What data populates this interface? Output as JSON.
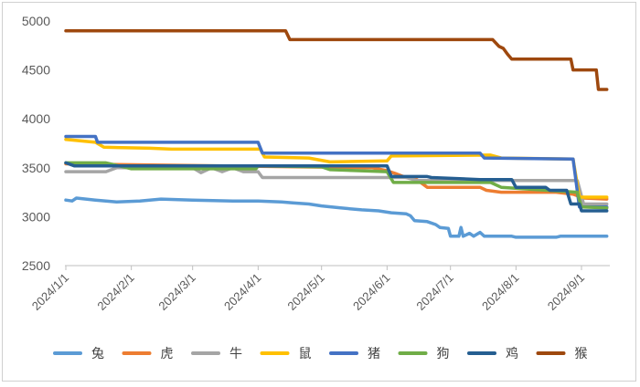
{
  "chart_data": {
    "type": "line",
    "title": "",
    "xlabel": "",
    "ylabel": "",
    "ylim": [
      2500,
      5000
    ],
    "yticks": [
      "2500",
      "3000",
      "3500",
      "4000",
      "4500",
      "5000"
    ],
    "x_range": [
      "2024-01-01",
      "2024-09-15"
    ],
    "xticks": [
      {
        "label": "2024/1/1",
        "date": "2024-01-01"
      },
      {
        "label": "2024/2/1",
        "date": "2024-02-01"
      },
      {
        "label": "2024/3/1",
        "date": "2024-03-01"
      },
      {
        "label": "2024/4/1",
        "date": "2024-04-01"
      },
      {
        "label": "2024/5/1",
        "date": "2024-05-01"
      },
      {
        "label": "2024/6/1",
        "date": "2024-06-01"
      },
      {
        "label": "2024/7/1",
        "date": "2024-07-01"
      },
      {
        "label": "2024/8/1",
        "date": "2024-08-01"
      },
      {
        "label": "2024/9/1",
        "date": "2024-09-01"
      }
    ],
    "grid": false,
    "legend_position": "bottom",
    "series": [
      {
        "name": "兔",
        "color": "#5B9BD5",
        "points": [
          [
            "2024-01-01",
            3170
          ],
          [
            "2024-01-04",
            3160
          ],
          [
            "2024-01-06",
            3190
          ],
          [
            "2024-01-15",
            3170
          ],
          [
            "2024-01-25",
            3150
          ],
          [
            "2024-02-05",
            3160
          ],
          [
            "2024-02-15",
            3180
          ],
          [
            "2024-03-01",
            3170
          ],
          [
            "2024-03-20",
            3160
          ],
          [
            "2024-04-01",
            3160
          ],
          [
            "2024-04-12",
            3150
          ],
          [
            "2024-04-18",
            3140
          ],
          [
            "2024-04-25",
            3130
          ],
          [
            "2024-05-01",
            3110
          ],
          [
            "2024-05-10",
            3090
          ],
          [
            "2024-05-20",
            3070
          ],
          [
            "2024-05-28",
            3060
          ],
          [
            "2024-06-03",
            3040
          ],
          [
            "2024-06-10",
            3030
          ],
          [
            "2024-06-12",
            3010
          ],
          [
            "2024-06-14",
            2960
          ],
          [
            "2024-06-20",
            2950
          ],
          [
            "2024-06-24",
            2920
          ],
          [
            "2024-06-26",
            2890
          ],
          [
            "2024-06-30",
            2880
          ],
          [
            "2024-07-01",
            2800
          ],
          [
            "2024-07-05",
            2800
          ],
          [
            "2024-07-06",
            2890
          ],
          [
            "2024-07-07",
            2800
          ],
          [
            "2024-07-10",
            2830
          ],
          [
            "2024-07-12",
            2800
          ],
          [
            "2024-07-15",
            2840
          ],
          [
            "2024-07-17",
            2800
          ],
          [
            "2024-07-30",
            2800
          ],
          [
            "2024-08-01",
            2790
          ],
          [
            "2024-08-20",
            2790
          ],
          [
            "2024-08-22",
            2800
          ],
          [
            "2024-09-13",
            2800
          ]
        ]
      },
      {
        "name": "虎",
        "color": "#ED7D31",
        "points": [
          [
            "2024-01-01",
            3540
          ],
          [
            "2024-05-25",
            3500
          ],
          [
            "2024-06-01",
            3470
          ],
          [
            "2024-06-05",
            3440
          ],
          [
            "2024-06-10",
            3400
          ],
          [
            "2024-06-15",
            3380
          ],
          [
            "2024-06-20",
            3300
          ],
          [
            "2024-07-15",
            3300
          ],
          [
            "2024-07-18",
            3270
          ],
          [
            "2024-07-25",
            3250
          ],
          [
            "2024-08-20",
            3250
          ],
          [
            "2024-08-28",
            3230
          ],
          [
            "2024-09-02",
            3190
          ],
          [
            "2024-09-13",
            3180
          ]
        ]
      },
      {
        "name": "牛",
        "color": "#A5A5A5",
        "points": [
          [
            "2024-01-01",
            3460
          ],
          [
            "2024-01-20",
            3460
          ],
          [
            "2024-01-25",
            3500
          ],
          [
            "2024-03-01",
            3500
          ],
          [
            "2024-03-05",
            3450
          ],
          [
            "2024-03-10",
            3500
          ],
          [
            "2024-03-15",
            3460
          ],
          [
            "2024-03-20",
            3500
          ],
          [
            "2024-03-25",
            3460
          ],
          [
            "2024-04-01",
            3460
          ],
          [
            "2024-04-03",
            3400
          ],
          [
            "2024-06-10",
            3400
          ],
          [
            "2024-06-15",
            3370
          ],
          [
            "2024-08-30",
            3370
          ],
          [
            "2024-09-02",
            3130
          ],
          [
            "2024-09-13",
            3130
          ]
        ]
      },
      {
        "name": "鼠",
        "color": "#FFC000",
        "points": [
          [
            "2024-01-01",
            3790
          ],
          [
            "2024-01-15",
            3760
          ],
          [
            "2024-01-19",
            3710
          ],
          [
            "2024-02-10",
            3700
          ],
          [
            "2024-02-20",
            3690
          ],
          [
            "2024-04-02",
            3690
          ],
          [
            "2024-04-04",
            3610
          ],
          [
            "2024-04-25",
            3600
          ],
          [
            "2024-05-05",
            3560
          ],
          [
            "2024-06-01",
            3570
          ],
          [
            "2024-06-03",
            3620
          ],
          [
            "2024-07-20",
            3630
          ],
          [
            "2024-07-25",
            3600
          ],
          [
            "2024-08-28",
            3590
          ],
          [
            "2024-08-31",
            3200
          ],
          [
            "2024-09-13",
            3200
          ]
        ]
      },
      {
        "name": "猪",
        "color": "#4472C4",
        "points": [
          [
            "2024-01-01",
            3820
          ],
          [
            "2024-01-15",
            3820
          ],
          [
            "2024-01-16",
            3760
          ],
          [
            "2024-04-01",
            3760
          ],
          [
            "2024-04-03",
            3650
          ],
          [
            "2024-07-15",
            3650
          ],
          [
            "2024-07-17",
            3600
          ],
          [
            "2024-08-28",
            3590
          ],
          [
            "2024-08-31",
            3100
          ],
          [
            "2024-09-13",
            3100
          ]
        ]
      },
      {
        "name": "狗",
        "color": "#70AD47",
        "points": [
          [
            "2024-01-01",
            3550
          ],
          [
            "2024-01-20",
            3550
          ],
          [
            "2024-02-01",
            3490
          ],
          [
            "2024-03-31",
            3490
          ],
          [
            "2024-04-01",
            3520
          ],
          [
            "2024-05-01",
            3510
          ],
          [
            "2024-05-05",
            3480
          ],
          [
            "2024-06-01",
            3460
          ],
          [
            "2024-06-04",
            3350
          ],
          [
            "2024-07-20",
            3350
          ],
          [
            "2024-07-25",
            3300
          ],
          [
            "2024-08-30",
            3250
          ],
          [
            "2024-09-01",
            3100
          ],
          [
            "2024-09-13",
            3090
          ]
        ]
      },
      {
        "name": "鸡",
        "color": "#255E91",
        "points": [
          [
            "2024-01-01",
            3550
          ],
          [
            "2024-01-05",
            3520
          ],
          [
            "2024-06-01",
            3520
          ],
          [
            "2024-06-03",
            3410
          ],
          [
            "2024-06-20",
            3410
          ],
          [
            "2024-06-22",
            3400
          ],
          [
            "2024-07-15",
            3380
          ],
          [
            "2024-07-30",
            3380
          ],
          [
            "2024-08-01",
            3300
          ],
          [
            "2024-08-15",
            3300
          ],
          [
            "2024-08-17",
            3270
          ],
          [
            "2024-08-25",
            3270
          ],
          [
            "2024-08-27",
            3130
          ],
          [
            "2024-08-31",
            3130
          ],
          [
            "2024-09-01",
            3060
          ],
          [
            "2024-09-13",
            3060
          ]
        ]
      },
      {
        "name": "猴",
        "color": "#9E480E",
        "points": [
          [
            "2024-01-01",
            4900
          ],
          [
            "2024-04-14",
            4900
          ],
          [
            "2024-04-16",
            4810
          ],
          [
            "2024-07-21",
            4810
          ],
          [
            "2024-07-24",
            4740
          ],
          [
            "2024-07-26",
            4720
          ],
          [
            "2024-07-28",
            4660
          ],
          [
            "2024-07-30",
            4610
          ],
          [
            "2024-08-27",
            4610
          ],
          [
            "2024-08-28",
            4500
          ],
          [
            "2024-09-08",
            4500
          ],
          [
            "2024-09-09",
            4300
          ],
          [
            "2024-09-13",
            4300
          ]
        ]
      }
    ]
  }
}
